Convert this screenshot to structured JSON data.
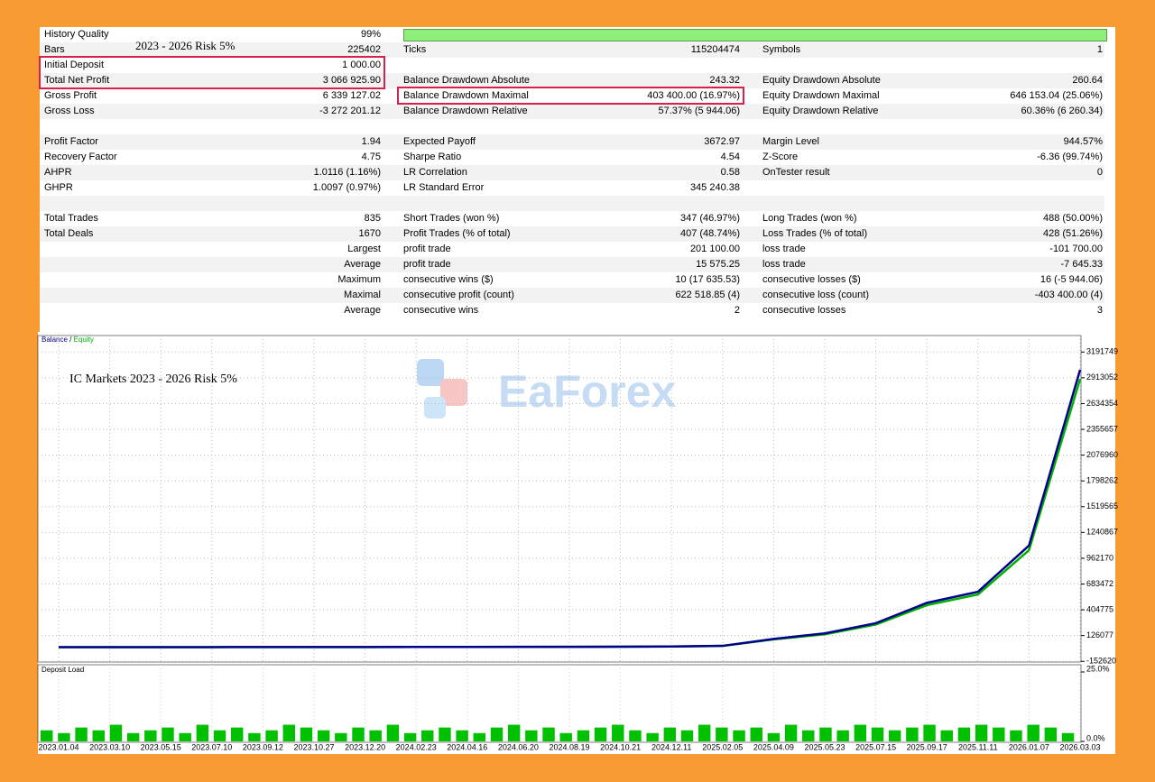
{
  "report": {
    "annotation": "2023 - 2026 Risk 5%",
    "rows": [
      {
        "c0": "History Quality",
        "c1": "99%"
      },
      {
        "c0": "Bars",
        "c1": "225402",
        "c2": "Ticks",
        "c3": "115204474",
        "c4": "Symbols",
        "c5": "1"
      },
      {
        "c0": "Initial Deposit",
        "c1": "1 000.00"
      },
      {
        "c0": "Total Net Profit",
        "c1": "3 066 925.90",
        "c2": "Balance Drawdown Absolute",
        "c3": "243.32",
        "c4": "Equity Drawdown Absolute",
        "c5": "260.64"
      },
      {
        "c0": "Gross Profit",
        "c1": "6 339 127.02",
        "c2": "Balance Drawdown Maximal",
        "c3": "403 400.00 (16.97%)",
        "c4": "Equity Drawdown Maximal",
        "c5": "646 153.04 (25.06%)"
      },
      {
        "c0": "Gross Loss",
        "c1": "-3 272 201.12",
        "c2": "Balance Drawdown Relative",
        "c3": "57.37% (5 944.06)",
        "c4": "Equity Drawdown Relative",
        "c5": "60.36% (6 260.34)"
      },
      {},
      {
        "c0": "Profit Factor",
        "c1": "1.94",
        "c2": "Expected Payoff",
        "c3": "3672.97",
        "c4": "Margin Level",
        "c5": "944.57%"
      },
      {
        "c0": "Recovery Factor",
        "c1": "4.75",
        "c2": "Sharpe Ratio",
        "c3": "4.54",
        "c4": "Z-Score",
        "c5": "-6.36 (99.74%)"
      },
      {
        "c0": "AHPR",
        "c1": "1.0116 (1.16%)",
        "c2": "LR Correlation",
        "c3": "0.58",
        "c4": "OnTester result",
        "c5": "0"
      },
      {
        "c0": "GHPR",
        "c1": "1.0097 (0.97%)",
        "c2": "LR Standard Error",
        "c3": "345 240.38"
      },
      {},
      {
        "c0": "Total Trades",
        "c1": "835",
        "c2": "Short Trades (won %)",
        "c3": "347 (46.97%)",
        "c4": "Long Trades (won %)",
        "c5": "488 (50.00%)"
      },
      {
        "c0": "Total Deals",
        "c1": "1670",
        "c2": "Profit Trades (% of total)",
        "c3": "407 (48.74%)",
        "c4": "Loss Trades (% of total)",
        "c5": "428 (51.26%)"
      },
      {
        "c1": "Largest",
        "c2": "profit trade",
        "c3": "201 100.00",
        "c4": "loss trade",
        "c5": "-101 700.00"
      },
      {
        "c1": "Average",
        "c2": "profit trade",
        "c3": "15 575.25",
        "c4": "loss trade",
        "c5": "-7 645.33"
      },
      {
        "c1": "Maximum",
        "c2": "consecutive wins ($)",
        "c3": "10 (17 635.53)",
        "c4": "consecutive losses ($)",
        "c5": "16 (-5 944.06)"
      },
      {
        "c1": "Maximal",
        "c2": "consecutive profit (count)",
        "c3": "622 518.85 (4)",
        "c4": "consecutive loss (count)",
        "c5": "-403 400.00 (4)"
      },
      {
        "c1": "Average",
        "c2": "consecutive wins",
        "c3": "2",
        "c4": "consecutive losses",
        "c5": "3"
      }
    ]
  },
  "chart_data": [
    {
      "type": "line",
      "annotation": "IC Markets 2023 - 2026 Risk 5%",
      "watermark": "EaForex",
      "legend_separator": "/",
      "grid": true,
      "x": [
        "2023.01.04",
        "2023.03.10",
        "2023.05.15",
        "2023.07.10",
        "2023.09.12",
        "2023.10.27",
        "2023.12.20",
        "2024.02.23",
        "2024.04.16",
        "2024.06.20",
        "2024.08.19",
        "2024.10.21",
        "2024.12.11",
        "2025.02.05",
        "2025.04.09",
        "2025.05.23",
        "2025.07.15",
        "2025.09.17",
        "2025.11.11",
        "2026.01.07",
        "2026.03.03"
      ],
      "series": [
        {
          "name": "Balance",
          "color": "#00008b",
          "values": [
            1000,
            1000,
            1200,
            1500,
            1800,
            2000,
            2500,
            3000,
            3500,
            4000,
            5000,
            6000,
            8000,
            15000,
            90000,
            150000,
            260000,
            480000,
            600000,
            1100000,
            3000000
          ]
        },
        {
          "name": "Equity",
          "color": "#00b000",
          "values": [
            1000,
            1000,
            1150,
            1450,
            1750,
            1950,
            2400,
            2900,
            3400,
            3900,
            4800,
            5800,
            7700,
            14500,
            85000,
            140000,
            245000,
            455000,
            570000,
            1050000,
            2900000
          ]
        }
      ],
      "ylim": [
        -160000,
        3370000
      ],
      "yticks": [
        -152620,
        126077,
        404775,
        683472,
        962170,
        1240867,
        1519565,
        1798262,
        2076960,
        2355657,
        2634354,
        2913052,
        3191749
      ]
    },
    {
      "type": "bar",
      "title": "Deposit Load",
      "color": "#00c000",
      "values": [
        4,
        3,
        5,
        4,
        6,
        3,
        4,
        5,
        3,
        6,
        4,
        5,
        3,
        4,
        6,
        5,
        4,
        3,
        5,
        4,
        6,
        3,
        4,
        5,
        4,
        3,
        5,
        6,
        4,
        5,
        3,
        4,
        5,
        6,
        4,
        3,
        5,
        4,
        6,
        5,
        4,
        5,
        3,
        6,
        4,
        5,
        4,
        6,
        5,
        4,
        5,
        6,
        4,
        5,
        6,
        5,
        4,
        6,
        5,
        3
      ],
      "ylim": [
        0,
        25
      ],
      "yticks": [
        {
          "value": 25,
          "label": "25.0%"
        },
        {
          "value": 0,
          "label": "0.0%"
        }
      ]
    }
  ]
}
